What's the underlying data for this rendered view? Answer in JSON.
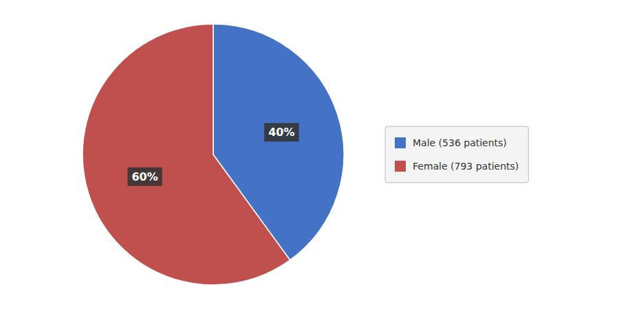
{
  "chart_data": {
    "type": "pie",
    "categories": [
      "Male (536 patients)",
      "Female (793 patients)"
    ],
    "values": [
      40,
      60
    ],
    "value_labels": [
      "40%",
      "60%"
    ],
    "colors": [
      "#4472C4",
      "#C0504D"
    ],
    "data_labels": true,
    "legend": "right"
  }
}
